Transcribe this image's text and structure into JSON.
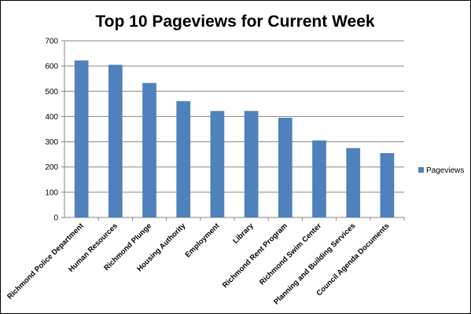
{
  "chart_data": {
    "type": "bar",
    "title": "Top 10 Pageviews for Current Week",
    "categories": [
      "Richmond Police Department",
      "Human Resources",
      "Richmond Plunge",
      "Housing Authority",
      "Employment",
      "Library",
      "Richmond Rent Program",
      "Richmond Swim Center",
      "Planning and Building Services",
      "Council Agenda Documents"
    ],
    "series": [
      {
        "name": "Pageviews",
        "color": "#4f81bd",
        "values": [
          622,
          605,
          533,
          461,
          422,
          422,
          395,
          305,
          275,
          255
        ]
      }
    ],
    "ylim": [
      0,
      700
    ],
    "yticks": [
      "0",
      "100",
      "200",
      "300",
      "400",
      "500",
      "600",
      "700"
    ],
    "grid": true,
    "legend_position": "right"
  }
}
